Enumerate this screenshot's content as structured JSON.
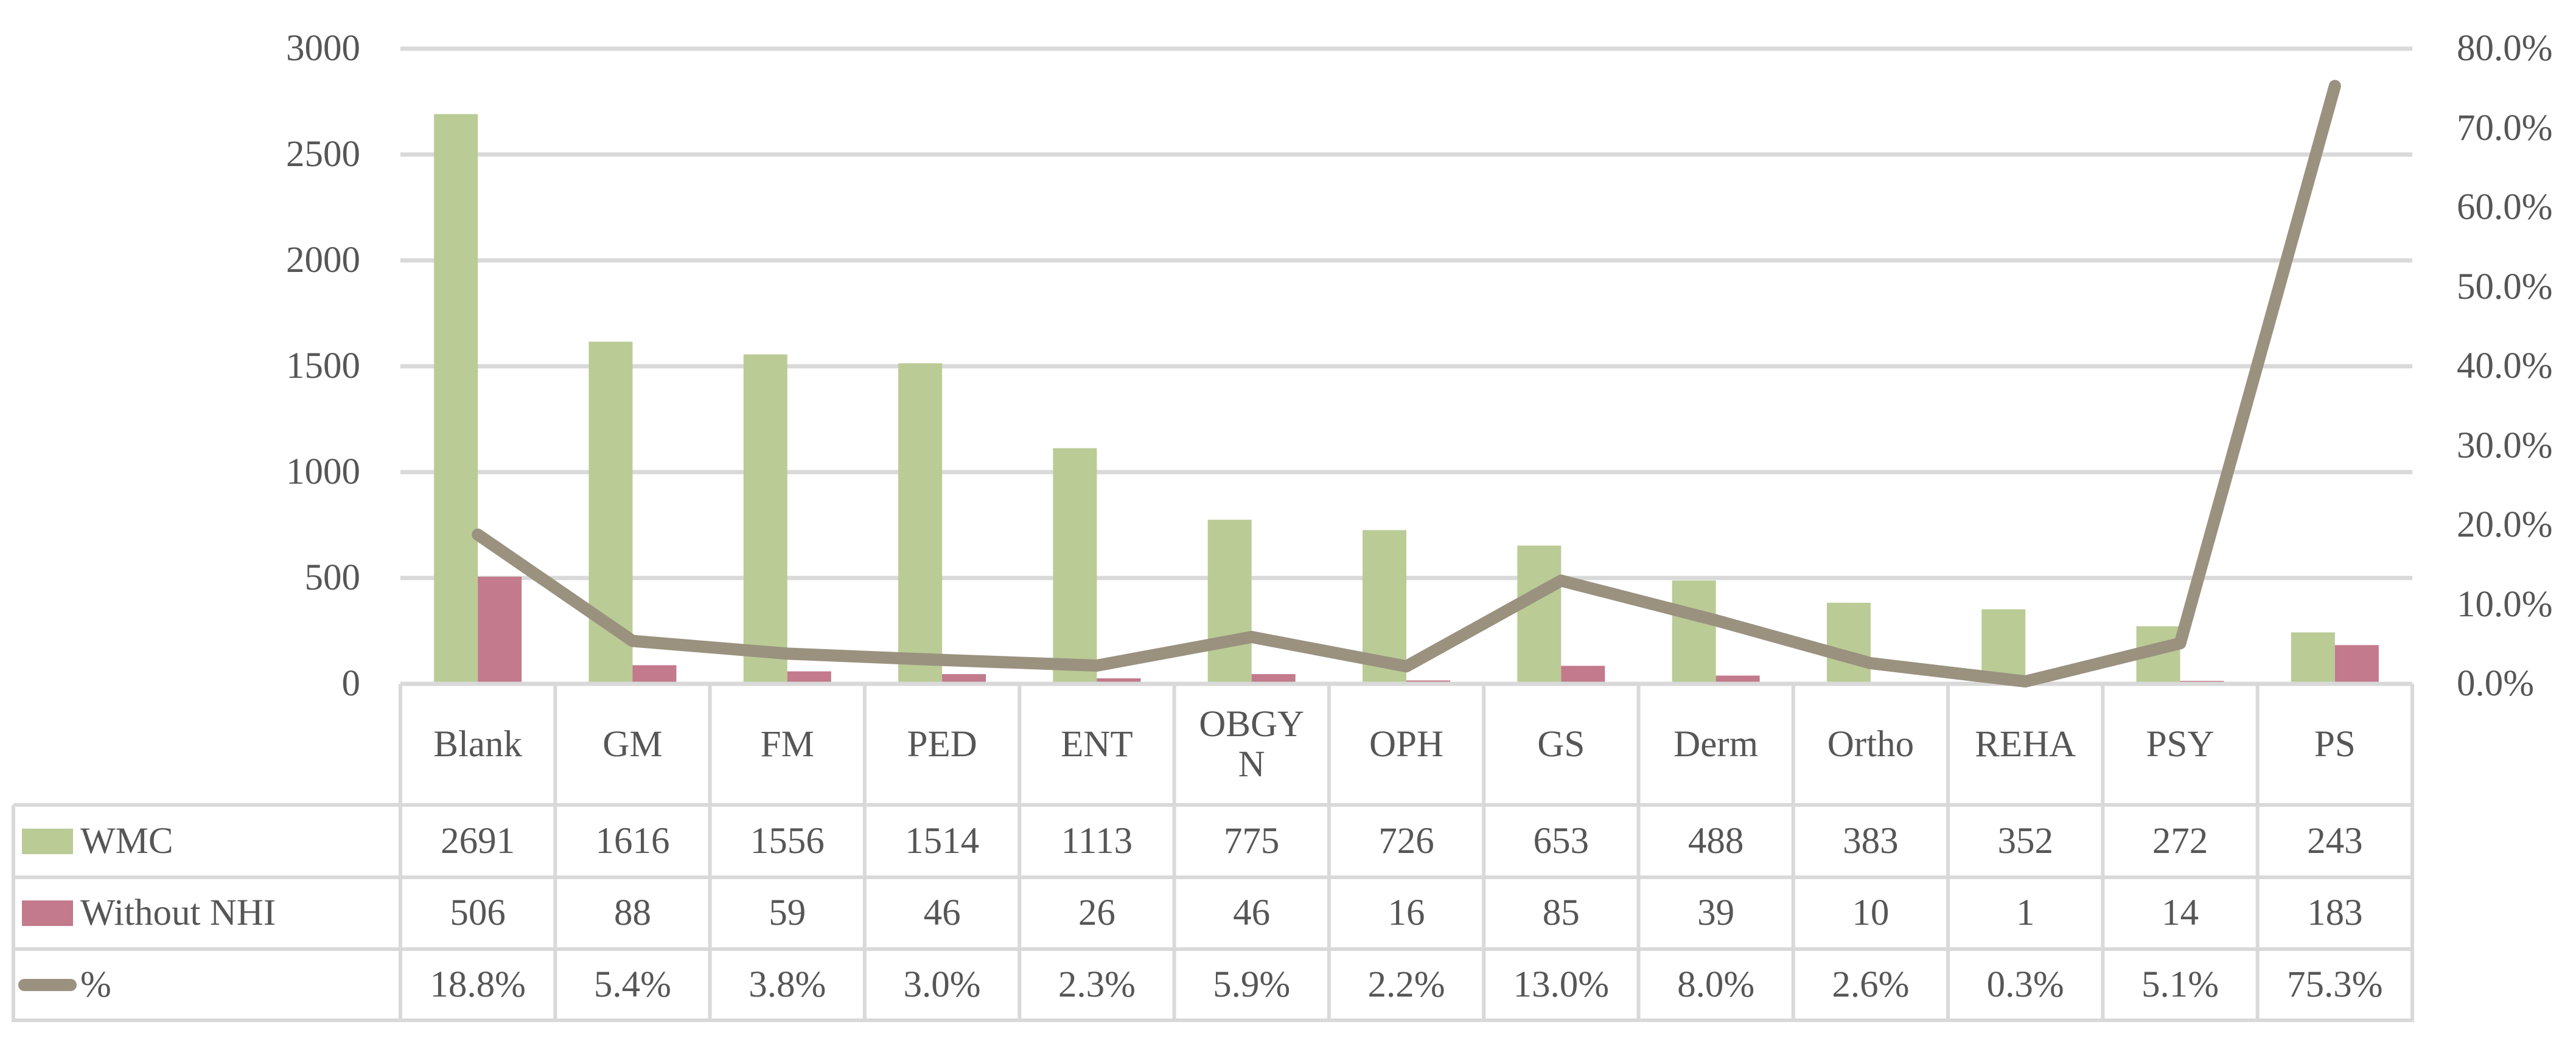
{
  "chart_data": {
    "type": "bar+line-combo",
    "title": "",
    "categories": [
      "Blank",
      "GM",
      "FM",
      "PED",
      "ENT",
      "OBGYN",
      "OPH",
      "GS",
      "Derm",
      "Ortho",
      "REHA",
      "PSY",
      "PS"
    ],
    "series": [
      {
        "name": "WMC",
        "type": "bar",
        "axis": "left",
        "color": "#BACB96",
        "values": [
          2691,
          1616,
          1556,
          1514,
          1113,
          775,
          726,
          653,
          488,
          383,
          352,
          272,
          243
        ]
      },
      {
        "name": "Without NHI",
        "type": "bar",
        "axis": "left",
        "color": "#C27A8C",
        "values": [
          506,
          88,
          59,
          46,
          26,
          46,
          16,
          85,
          39,
          10,
          1,
          14,
          183
        ]
      },
      {
        "name": "%",
        "type": "line",
        "axis": "right",
        "color": "#9A917F",
        "values": [
          18.8,
          5.4,
          3.8,
          3.0,
          2.3,
          5.9,
          2.2,
          13.0,
          8.0,
          2.6,
          0.3,
          5.1,
          75.3
        ]
      }
    ],
    "left_axis": {
      "min": 0,
      "max": 3000,
      "step": 500,
      "tick_labels": [
        "3000",
        "2500",
        "2000",
        "1500",
        "1000",
        "500",
        "0"
      ]
    },
    "right_axis": {
      "min": 0,
      "max": 80,
      "step": 10,
      "tick_labels": [
        "80.0%",
        "70.0%",
        "60.0%",
        "50.0%",
        "40.0%",
        "30.0%",
        "20.0%",
        "10.0%",
        "0.0%"
      ]
    },
    "grid": true,
    "legend_position": "data-table-left-keys",
    "colors": {
      "grid": "#D9D9D9",
      "axis_line": "#D9D9D9",
      "text": "#565656",
      "background": "#FFFFFF"
    }
  },
  "data_table": {
    "rows": [
      {
        "label": "WMC",
        "key": "bar",
        "color": "#BACB96",
        "cells": [
          "2691",
          "1616",
          "1556",
          "1514",
          "1113",
          "775",
          "726",
          "653",
          "488",
          "383",
          "352",
          "272",
          "243"
        ]
      },
      {
        "label": "Without NHI",
        "key": "bar",
        "color": "#C27A8C",
        "cells": [
          "506",
          "88",
          "59",
          "46",
          "26",
          "46",
          "16",
          "85",
          "39",
          "10",
          "1",
          "14",
          "183"
        ]
      },
      {
        "label": "%",
        "key": "line",
        "color": "#9A917F",
        "cells": [
          "18.8%",
          "5.4%",
          "3.8%",
          "3.0%",
          "2.3%",
          "5.9%",
          "2.2%",
          "13.0%",
          "8.0%",
          "2.6%",
          "0.3%",
          "5.1%",
          "75.3%"
        ]
      }
    ]
  }
}
